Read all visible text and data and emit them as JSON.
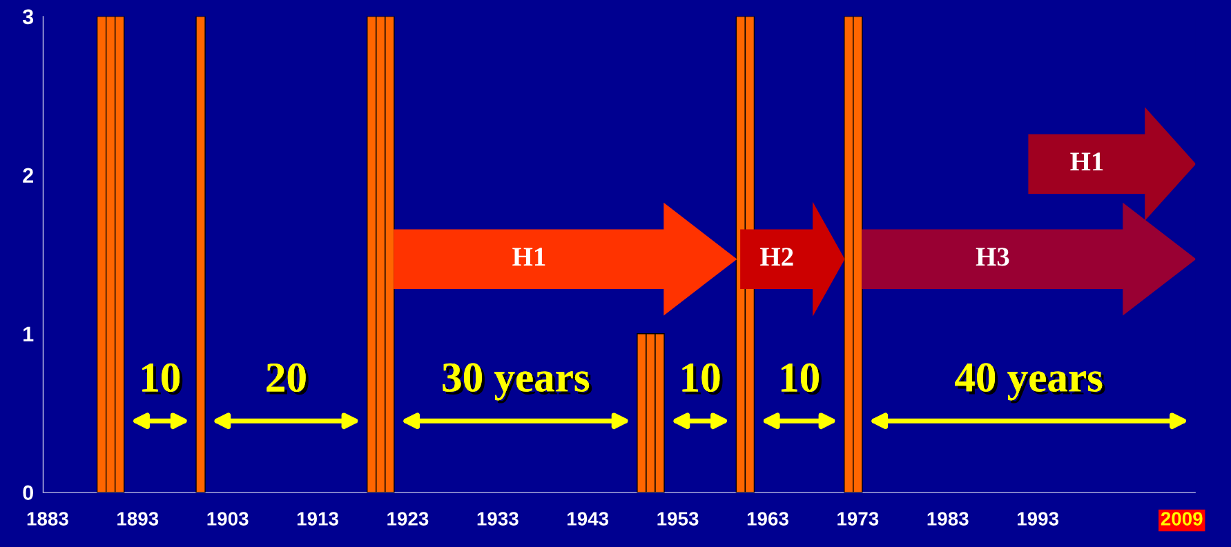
{
  "chart_data": {
    "type": "bar",
    "x": [
      1889,
      1890,
      1891,
      1900,
      1919,
      1920,
      1921,
      1949,
      1950,
      1951,
      1960,
      1961,
      1972,
      1973
    ],
    "values": [
      3,
      3,
      3,
      3,
      3,
      3,
      3,
      1,
      1,
      1,
      3,
      3,
      3,
      3
    ],
    "color": "#ff6600",
    "xlim": [
      1882.5,
      2010.5
    ],
    "xticks": [
      1883,
      1893,
      1903,
      1913,
      1923,
      1933,
      1943,
      1953,
      1963,
      1973,
      1983,
      1993,
      2009
    ],
    "ylim": [
      0,
      3
    ],
    "yticks": [
      0,
      1,
      2,
      3
    ],
    "grid": false,
    "legend": false,
    "annotations": [
      "10",
      "20",
      "30 years",
      "10",
      "10",
      "40 years",
      "H1",
      "H2",
      "H3",
      "H1"
    ]
  }
}
